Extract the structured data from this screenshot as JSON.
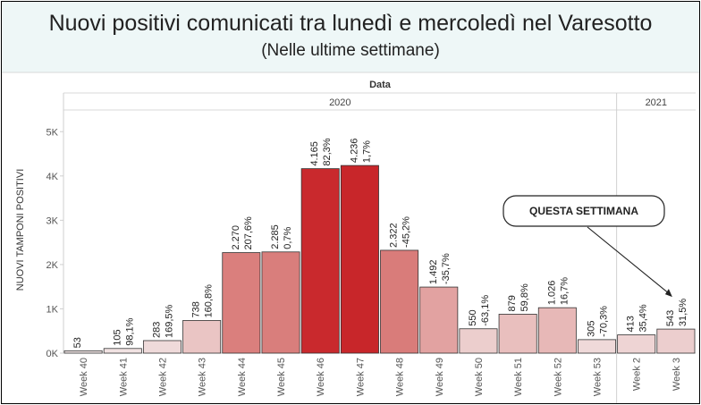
{
  "header": {
    "title": "Nuovi positivi comunicati tra lunedì e mercoledì nel Varesotto",
    "subtitle": "(Nelle ultime settimane)"
  },
  "chart_data": {
    "type": "bar",
    "title": "Nuovi positivi comunicati tra lunedì e mercoledì nel Varesotto",
    "subtitle": "(Nelle ultime settimane)",
    "xlabel": "Data",
    "ylabel": "NUOVI TAMPONI POSITIVI",
    "ylim": [
      0,
      5500
    ],
    "yticks": [
      0,
      1000,
      2000,
      3000,
      4000,
      5000
    ],
    "ytick_labels": [
      "0K",
      "1K",
      "2K",
      "3K",
      "4K",
      "5K"
    ],
    "groups": [
      {
        "label": "2020",
        "start": 0,
        "end": 13
      },
      {
        "label": "2021",
        "start": 14,
        "end": 15
      }
    ],
    "categories": [
      "Week 40",
      "Week 41",
      "Week 42",
      "Week 43",
      "Week 44",
      "Week 45",
      "Week 46",
      "Week 47",
      "Week 48",
      "Week 49",
      "Week 50",
      "Week 51",
      "Week 52",
      "Week 53",
      "Week 2",
      "Week 3"
    ],
    "values": [
      53,
      105,
      283,
      738,
      2270,
      2285,
      4165,
      4236,
      2322,
      1492,
      550,
      879,
      1026,
      305,
      413,
      543
    ],
    "value_labels": [
      "53",
      "105",
      "283",
      "738",
      "2.270",
      "2.285",
      "4.165",
      "4.236",
      "2.322",
      "1.492",
      "550",
      "879",
      "1.026",
      "305",
      "413",
      "543"
    ],
    "pct_labels": [
      "",
      "98,1%",
      "169,5%",
      "160,8%",
      "207,6%",
      "0,7%",
      "82,3%",
      "1,7%",
      "-45,2%",
      "-35,7%",
      "-63,1%",
      "59,8%",
      "16,7%",
      "-70,3%",
      "35,4%",
      "31,5%"
    ],
    "grid": false,
    "color_scale": {
      "low": "#f2e7e7",
      "mid": "#d97c7a",
      "high": "#c8262a"
    },
    "annotation": {
      "text": "QUESTA SETTIMANA",
      "target": "Week 3"
    }
  }
}
